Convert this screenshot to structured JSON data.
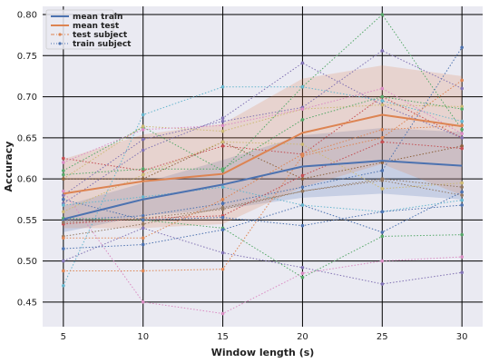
{
  "chart_data": {
    "type": "line",
    "title": "",
    "xlabel": "Window length (s)",
    "ylabel": "Accuracy",
    "x": [
      5,
      10,
      15,
      20,
      25,
      30
    ],
    "xlim": [
      3.7,
      31.3
    ],
    "ylim": [
      0.42,
      0.81
    ],
    "xticks": [
      5,
      10,
      15,
      20,
      25,
      30
    ],
    "yticks": [
      0.45,
      0.5,
      0.55,
      0.6,
      0.65,
      0.7,
      0.75,
      0.8
    ],
    "ytick_labels": [
      "0.45",
      "0.50",
      "0.55",
      "0.60",
      "0.65",
      "0.70",
      "0.75",
      "0.80"
    ],
    "grid": true,
    "legend_position": "top-left",
    "series": [
      {
        "name": "mean train",
        "role": "mean",
        "color": "#4c72b0",
        "values": [
          0.551,
          0.575,
          0.593,
          0.615,
          0.622,
          0.616
        ],
        "band_lower": [
          0.535,
          0.555,
          0.563,
          0.577,
          0.582,
          0.575
        ],
        "band_upper": [
          0.567,
          0.595,
          0.623,
          0.653,
          0.662,
          0.657
        ],
        "band_color": "#4c72b0"
      },
      {
        "name": "mean test",
        "role": "mean",
        "color": "#dd8452",
        "values": [
          0.582,
          0.597,
          0.606,
          0.656,
          0.678,
          0.664
        ],
        "band_lower": [
          0.54,
          0.54,
          0.545,
          0.59,
          0.618,
          0.58
        ],
        "band_upper": [
          0.624,
          0.654,
          0.667,
          0.722,
          0.738,
          0.725
        ],
        "band_color": "#dd8452"
      },
      {
        "name": "test subject",
        "role": "legend",
        "color": "#dd8452",
        "style": "dashdot"
      },
      {
        "name": "train subject",
        "role": "legend",
        "color": "#4c72b0",
        "style": "dotted"
      }
    ],
    "subjects": [
      {
        "color": "#55a868",
        "values": [
          0.61,
          0.663,
          0.61,
          0.712,
          0.8,
          0.66
        ]
      },
      {
        "color": "#c44e52",
        "values": [
          0.625,
          0.61,
          0.64,
          0.63,
          0.7,
          0.65
        ]
      },
      {
        "color": "#8172b3",
        "values": [
          0.57,
          0.635,
          0.674,
          0.741,
          0.69,
          0.65
        ]
      },
      {
        "color": "#4c72b0",
        "values": [
          0.55,
          0.555,
          0.57,
          0.59,
          0.61,
          0.76
        ]
      },
      {
        "color": "#64b5cd",
        "values": [
          0.47,
          0.678,
          0.712,
          0.712,
          0.695,
          0.67
        ]
      },
      {
        "color": "#ccb974",
        "values": [
          0.6,
          0.664,
          0.658,
          0.685,
          0.69,
          0.688
        ]
      },
      {
        "color": "#dd8452",
        "values": [
          0.488,
          0.488,
          0.49,
          0.628,
          0.65,
          0.72
        ]
      },
      {
        "color": "#da8bc3",
        "values": [
          0.585,
          0.45,
          0.436,
          0.485,
          0.5,
          0.505
        ]
      },
      {
        "color": "#8c613c",
        "values": [
          0.6,
          0.6,
          0.645,
          0.6,
          0.62,
          0.64
        ]
      },
      {
        "color": "#937860",
        "values": [
          0.53,
          0.545,
          0.565,
          0.585,
          0.598,
          0.58
        ]
      },
      {
        "color": "#8172b3",
        "values": [
          0.5,
          0.54,
          0.51,
          0.492,
          0.472,
          0.486
        ]
      },
      {
        "color": "#55a868",
        "values": [
          0.552,
          0.55,
          0.54,
          0.48,
          0.53,
          0.532
        ]
      },
      {
        "color": "#c44e52",
        "values": [
          0.545,
          0.552,
          0.555,
          0.604,
          0.645,
          0.637
        ]
      },
      {
        "color": "#4c72b0",
        "values": [
          0.515,
          0.52,
          0.538,
          0.568,
          0.535,
          0.584
        ]
      },
      {
        "color": "#64b5cd",
        "values": [
          0.568,
          0.578,
          0.59,
          0.568,
          0.56,
          0.574
        ]
      },
      {
        "color": "#ccb974",
        "values": [
          0.56,
          0.605,
          0.645,
          0.642,
          0.588,
          0.595
        ]
      },
      {
        "color": "#8172b3",
        "values": [
          0.58,
          0.648,
          0.67,
          0.687,
          0.756,
          0.71
        ]
      },
      {
        "color": "#937860",
        "values": [
          0.547,
          0.552,
          0.563,
          0.585,
          0.6,
          0.59
        ]
      },
      {
        "color": "#55a868",
        "values": [
          0.605,
          0.612,
          0.612,
          0.672,
          0.7,
          0.685
        ]
      },
      {
        "color": "#dd8452",
        "values": [
          0.528,
          0.528,
          0.575,
          0.63,
          0.66,
          0.665
        ]
      },
      {
        "color": "#da8bc3",
        "values": [
          0.62,
          0.66,
          0.665,
          0.685,
          0.71,
          0.655
        ]
      },
      {
        "color": "#4c72b0",
        "values": [
          0.575,
          0.55,
          0.553,
          0.543,
          0.56,
          0.568
        ]
      }
    ]
  }
}
